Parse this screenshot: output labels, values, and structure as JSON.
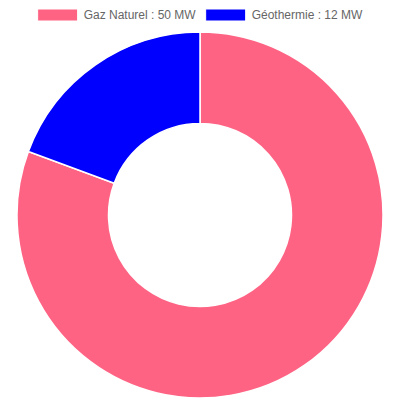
{
  "chart_data": {
    "type": "doughnut",
    "categories": [
      "Gaz Naturel : 50 MW",
      "Géothermie : 12 MW"
    ],
    "values": [
      50,
      12
    ],
    "colors": [
      "#ff6384",
      "#0000ff"
    ],
    "legend": "top"
  }
}
